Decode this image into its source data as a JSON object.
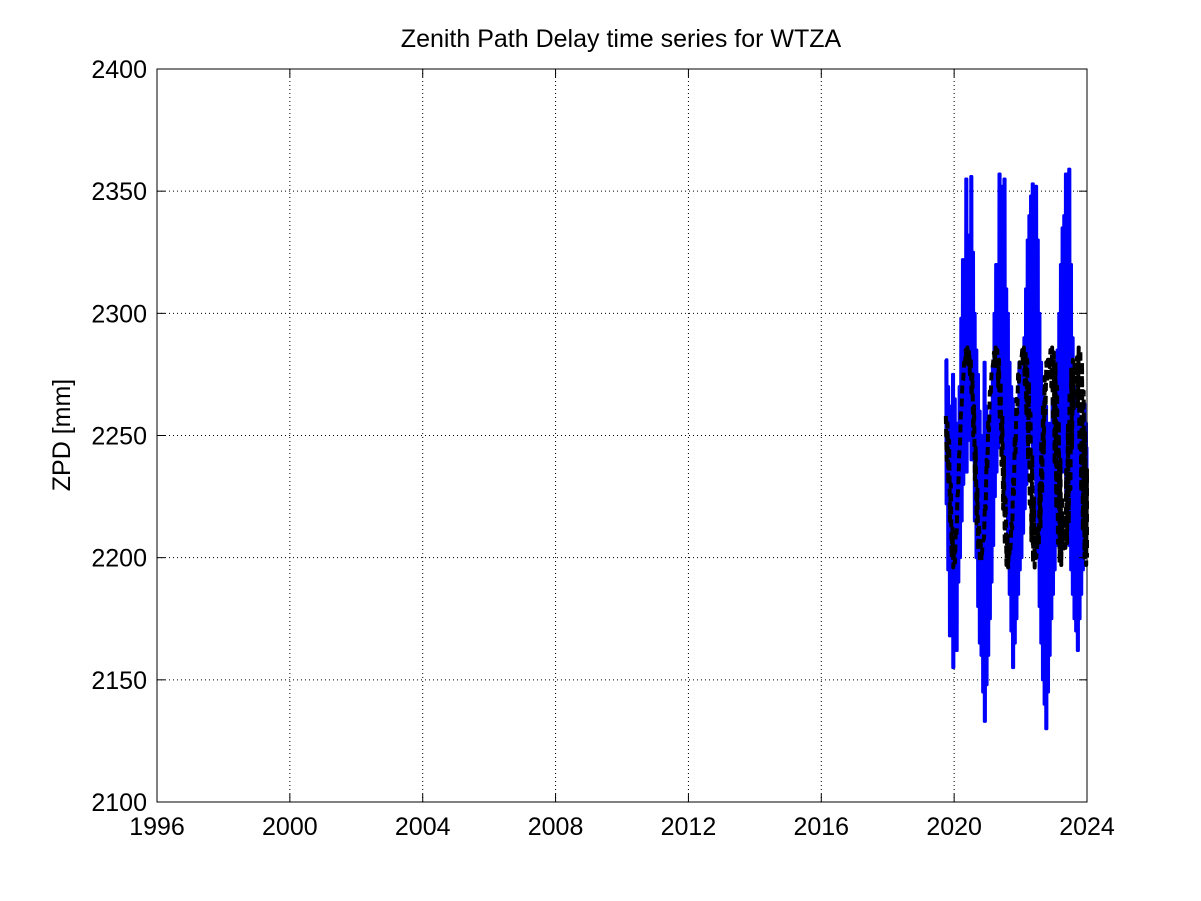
{
  "chart_data": {
    "type": "line",
    "title": "Zenith Path Delay time series for WTZA",
    "xlabel": "",
    "ylabel": "ZPD [mm]",
    "xlim": [
      1996,
      2024
    ],
    "ylim": [
      2100,
      2400
    ],
    "xticks": [
      1996,
      2000,
      2004,
      2008,
      2012,
      2016,
      2020,
      2024
    ],
    "yticks": [
      2100,
      2150,
      2200,
      2250,
      2300,
      2350,
      2400
    ],
    "grid": true,
    "series": [
      {
        "style": "solid",
        "color": "#0000ff",
        "x": [
          2019.75,
          2019.8,
          2019.85,
          2019.9,
          2019.95,
          2020.0,
          2020.05,
          2020.1,
          2020.15,
          2020.2,
          2020.25,
          2020.3,
          2020.35,
          2020.4,
          2020.45,
          2020.5,
          2020.55,
          2020.6,
          2020.65,
          2020.7,
          2020.75,
          2020.8,
          2020.85,
          2020.9,
          2020.95,
          2021.0,
          2021.05,
          2021.1,
          2021.15,
          2021.2,
          2021.25,
          2021.3,
          2021.35,
          2021.4,
          2021.45,
          2021.5,
          2021.55,
          2021.6,
          2021.65,
          2021.7,
          2021.75,
          2021.8,
          2021.85,
          2021.9,
          2021.95,
          2022.0,
          2022.05,
          2022.1,
          2022.15,
          2022.2,
          2022.25,
          2022.3,
          2022.35,
          2022.4,
          2022.45,
          2022.5,
          2022.55,
          2022.6,
          2022.65,
          2022.7,
          2022.75,
          2022.8,
          2022.85,
          2022.9,
          2022.95,
          2023.0,
          2023.05,
          2023.1,
          2023.15,
          2023.2,
          2023.25,
          2023.3,
          2023.35,
          2023.4,
          2023.45,
          2023.5,
          2023.55,
          2023.6,
          2023.65,
          2023.7,
          2023.75,
          2023.8,
          2023.85,
          2023.9,
          2023.95,
          2024.0
        ],
        "y_max": [
          2281,
          2270,
          2262,
          2250,
          2275,
          2265,
          2255,
          2245,
          2270,
          2298,
          2322,
          2305,
          2355,
          2330,
          2332,
          2356,
          2325,
          2300,
          2285,
          2275,
          2260,
          2250,
          2240,
          2280,
          2262,
          2245,
          2255,
          2260,
          2278,
          2300,
          2320,
          2310,
          2357,
          2340,
          2352,
          2355,
          2310,
          2300,
          2280,
          2270,
          2265,
          2255,
          2260,
          2250,
          2280,
          2265,
          2278,
          2290,
          2310,
          2330,
          2340,
          2348,
          2353,
          2340,
          2352,
          2330,
          2300,
          2280,
          2270,
          2265,
          2262,
          2250,
          2255,
          2240,
          2265,
          2260,
          2268,
          2285,
          2300,
          2320,
          2335,
          2340,
          2357,
          2350,
          2359,
          2320,
          2290,
          2270,
          2268,
          2260,
          2258,
          2250,
          2255,
          2263,
          2255,
          2245
        ],
        "y_min": [
          2222,
          2195,
          2168,
          2180,
          2155,
          2175,
          2162,
          2190,
          2200,
          2215,
          2230,
          2242,
          2235,
          2248,
          2250,
          2240,
          2245,
          2215,
          2200,
          2180,
          2165,
          2160,
          2145,
          2133,
          2148,
          2160,
          2175,
          2190,
          2205,
          2225,
          2235,
          2245,
          2250,
          2250,
          2248,
          2240,
          2220,
          2200,
          2185,
          2170,
          2155,
          2165,
          2175,
          2185,
          2195,
          2200,
          2210,
          2220,
          2230,
          2240,
          2248,
          2250,
          2245,
          2235,
          2215,
          2200,
          2180,
          2165,
          2150,
          2140,
          2130,
          2145,
          2160,
          2175,
          2185,
          2195,
          2205,
          2215,
          2225,
          2235,
          2245,
          2235,
          2225,
          2215,
          2205,
          2195,
          2185,
          2175,
          2170,
          2162,
          2175,
          2185,
          2195,
          2200,
          2210,
          2220
        ]
      },
      {
        "style": "dashed",
        "color": "#000000",
        "x": [
          2019.75,
          2019.8,
          2019.85,
          2019.9,
          2019.95,
          2020.0,
          2020.05,
          2020.1,
          2020.15,
          2020.2,
          2020.25,
          2020.3,
          2020.35,
          2020.4,
          2020.45,
          2020.5,
          2020.55,
          2020.6,
          2020.65,
          2020.7,
          2020.75,
          2020.8,
          2020.85,
          2020.9,
          2020.95,
          2021.0,
          2021.05,
          2021.1,
          2021.15,
          2021.2,
          2021.25,
          2021.3,
          2021.35,
          2021.4,
          2021.45,
          2021.5,
          2021.55,
          2021.6,
          2021.65,
          2021.7,
          2021.75,
          2021.8,
          2021.85,
          2021.9,
          2021.95,
          2022.0,
          2022.05,
          2022.1,
          2022.15,
          2022.2,
          2022.25,
          2022.3,
          2022.35,
          2022.4,
          2022.45,
          2022.5,
          2022.55,
          2022.6,
          2022.65,
          2022.7,
          2022.75,
          2022.8,
          2022.85,
          2022.9,
          2022.95,
          2023.0,
          2023.05,
          2023.1,
          2023.15,
          2023.2,
          2023.25,
          2023.3,
          2023.35,
          2023.4,
          2023.45,
          2023.5,
          2023.55,
          2023.6,
          2023.65,
          2023.7,
          2023.75,
          2023.8,
          2023.85,
          2023.9,
          2023.95,
          2024.0
        ],
        "y_max": [
          2258,
          2255,
          2248,
          2230,
          2212,
          2205,
          2212,
          2225,
          2242,
          2258,
          2272,
          2280,
          2285,
          2286,
          2285,
          2282,
          2275,
          2262,
          2245,
          2228,
          2214,
          2206,
          2204,
          2208,
          2220,
          2236,
          2252,
          2266,
          2277,
          2284,
          2286,
          2285,
          2281,
          2272,
          2258,
          2241,
          2224,
          2210,
          2204,
          2205,
          2212,
          2226,
          2243,
          2259,
          2272,
          2280,
          2285,
          2286,
          2285,
          2281,
          2272,
          2259,
          2242,
          2225,
          2211,
          2205,
          2205,
          2212,
          2226,
          2243,
          2259,
          2272,
          2281,
          2285,
          2286,
          2284,
          2280,
          2270,
          2256,
          2240,
          2225,
          2211,
          2204,
          2206,
          2214,
          2228,
          2245,
          2261,
          2274,
          2282,
          2286,
          2285,
          2280,
          2268,
          2252,
          2236
        ],
        "y_min": [
          2240,
          2230,
          2215,
          2200,
          2196,
          2198,
          2210,
          2228,
          2245,
          2262,
          2273,
          2278,
          2280,
          2279,
          2275,
          2266,
          2250,
          2232,
          2214,
          2203,
          2198,
          2199,
          2207,
          2222,
          2240,
          2256,
          2268,
          2276,
          2280,
          2280,
          2277,
          2270,
          2256,
          2238,
          2220,
          2205,
          2197,
          2196,
          2201,
          2214,
          2232,
          2250,
          2265,
          2275,
          2280,
          2281,
          2278,
          2271,
          2258,
          2240,
          2222,
          2207,
          2198,
          2196,
          2200,
          2212,
          2230,
          2248,
          2263,
          2274,
          2280,
          2281,
          2278,
          2270,
          2256,
          2238,
          2220,
          2206,
          2198,
          2197,
          2203,
          2218,
          2236,
          2254,
          2268,
          2277,
          2281,
          2280,
          2274,
          2262,
          2245,
          2227,
          2211,
          2200,
          2197,
          2200
        ]
      }
    ]
  }
}
